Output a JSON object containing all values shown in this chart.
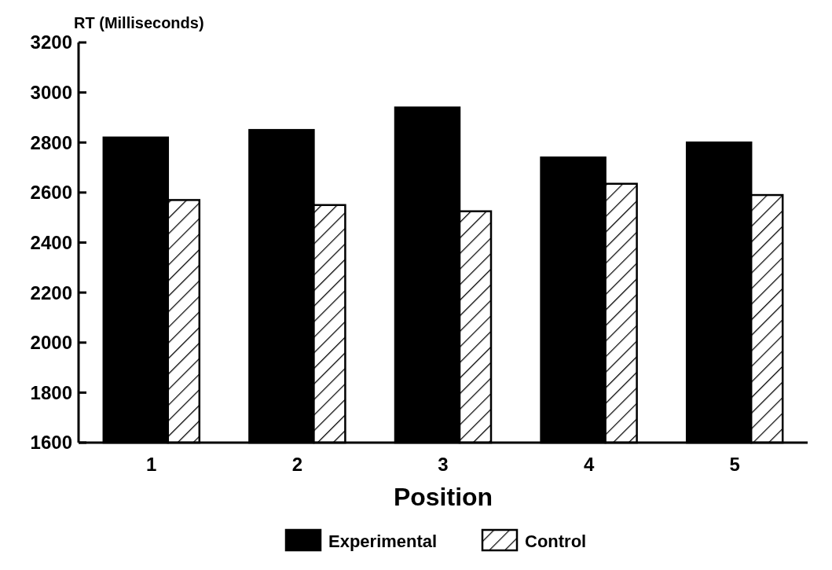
{
  "chart_data": {
    "type": "bar",
    "ylabel": "RT (Milliseconds)",
    "xlabel": "Position",
    "categories": [
      "1",
      "2",
      "3",
      "4",
      "5"
    ],
    "series": [
      {
        "name": "Experimental",
        "color": "#000000",
        "values": [
          2820,
          2850,
          2940,
          2740,
          2800
        ]
      },
      {
        "name": "Control",
        "color": "#000000",
        "values": [
          2570,
          2550,
          2525,
          2635,
          2590
        ]
      }
    ],
    "ylim": [
      1600,
      3200
    ],
    "yticks": [
      1600,
      1800,
      2000,
      2200,
      2400,
      2600,
      2800,
      3000,
      3200
    ],
    "legend": "bottom",
    "grid": false
  }
}
